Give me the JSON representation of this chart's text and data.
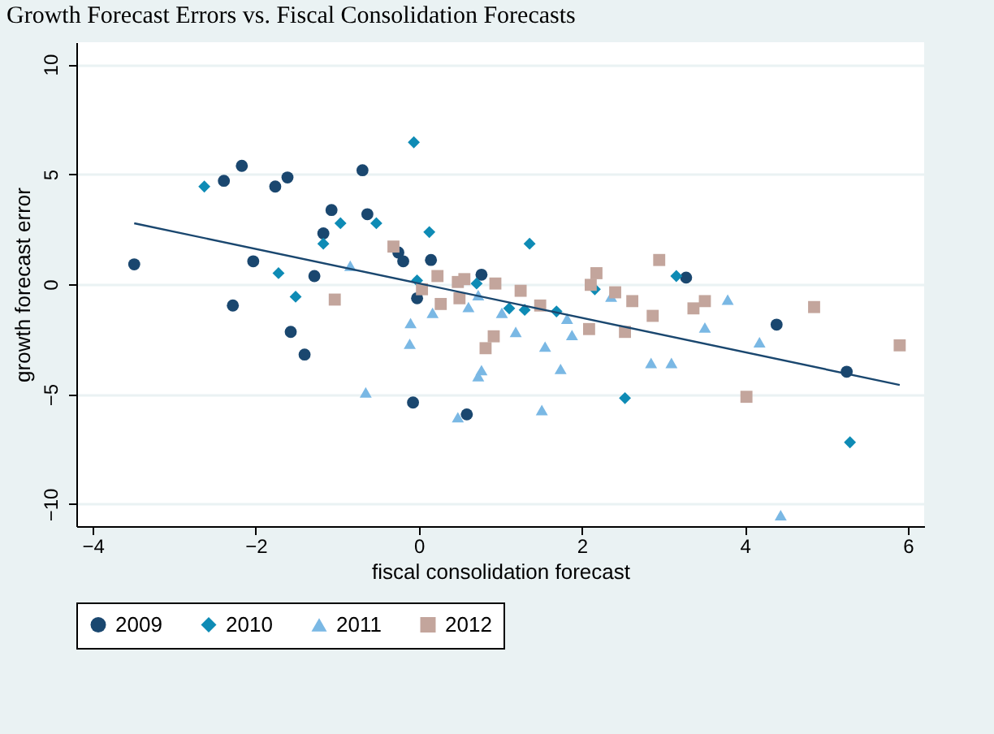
{
  "chart_data": {
    "type": "scatter",
    "title": "Growth Forecast Errors vs. Fiscal Consolidation Forecasts",
    "xlabel": "fiscal consolidation forecast",
    "ylabel": "growth forecast error",
    "xlim": [
      -4.2,
      6.2
    ],
    "ylim": [
      -11,
      11
    ],
    "xticks": [
      -4,
      -2,
      0,
      2,
      4,
      6
    ],
    "yticks": [
      -10,
      -5,
      0,
      5,
      10
    ],
    "grid": "y",
    "legend": "bottom",
    "series": [
      {
        "name": "2009",
        "color": "#1a476f",
        "marker": "circle",
        "x": [
          -3.49,
          -2.28,
          -2.17,
          -2.39,
          -1.76,
          -1.61,
          -2.03,
          -1.57,
          -1.4,
          -1.28,
          -1.07,
          -1.17,
          -0.69,
          -0.63,
          -0.25,
          -0.19,
          -0.07,
          -0.02,
          0.15,
          0.77,
          0.59,
          3.28,
          4.39,
          5.25
        ],
        "values": [
          0.9,
          -0.97,
          5.38,
          4.7,
          4.44,
          4.85,
          1.04,
          -2.17,
          -3.2,
          0.37,
          3.37,
          2.31,
          5.18,
          3.18,
          1.44,
          1.04,
          -5.38,
          -0.64,
          1.1,
          0.43,
          -5.92,
          0.3,
          -1.84,
          -3.98
        ]
      },
      {
        "name": "2010",
        "color": "#0e8bb5",
        "marker": "diamond",
        "x": [
          -2.63,
          -1.72,
          -1.51,
          -1.17,
          -0.96,
          -0.52,
          -0.06,
          -0.02,
          0.13,
          0.42,
          0.71,
          1.11,
          1.3,
          1.36,
          1.69,
          2.16,
          2.53,
          3.16,
          5.29
        ],
        "values": [
          4.44,
          0.5,
          -0.57,
          1.84,
          2.77,
          2.77,
          6.45,
          0.17,
          2.37,
          null,
          0.03,
          -1.1,
          -1.17,
          1.84,
          -1.24,
          -0.23,
          -5.18,
          0.37,
          -7.19
        ]
      },
      {
        "name": "2011",
        "color": "#7ab8e4",
        "marker": "triangle",
        "x": [
          -0.84,
          -0.1,
          -0.11,
          -0.65,
          0.17,
          0.61,
          0.73,
          1.02,
          1.19,
          1.55,
          1.88,
          1.82,
          1.74,
          0.77,
          0.73,
          1.51,
          0.48,
          2.36,
          2.85,
          3.79,
          3.51,
          4.18,
          3.1,
          4.44
        ],
        "values": [
          0.84,
          -1.77,
          -2.71,
          -4.92,
          -1.3,
          -1.04,
          -0.5,
          -1.3,
          -2.17,
          -2.84,
          -2.31,
          -1.57,
          -3.85,
          -3.91,
          -4.18,
          -5.72,
          -6.05,
          -0.57,
          -3.58,
          -0.7,
          -1.97,
          -2.64,
          -3.58,
          -10.5
        ]
      },
      {
        "name": "2012",
        "color": "#c3a59c",
        "marker": "square",
        "x": [
          -0.31,
          -1.03,
          0.04,
          0.23,
          0.27,
          0.48,
          0.56,
          0.5,
          0.94,
          1.25,
          0.92,
          0.82,
          1.49,
          2.09,
          2.11,
          2.18,
          2.41,
          2.62,
          2.53,
          2.89,
          2.95,
          2.87,
          3.37,
          3.51,
          4.02,
          4.85,
          5.9
        ],
        "values": [
          1.71,
          -0.7,
          -0.23,
          0.37,
          -0.9,
          0.1,
          0.23,
          -0.64,
          0.03,
          -0.3,
          -2.37,
          -2.91,
          -0.97,
          -2.04,
          -0.03,
          0.5,
          -0.37,
          -0.77,
          -2.17,
          null,
          1.1,
          -1.44,
          -1.1,
          -0.77,
          -5.12,
          -1.04,
          -2.78
        ]
      },
      {
        "type": "line",
        "color": "#1a476f",
        "x": [
          -3.49,
          5.9
        ],
        "values": [
          2.77,
          -4.58
        ]
      }
    ]
  }
}
